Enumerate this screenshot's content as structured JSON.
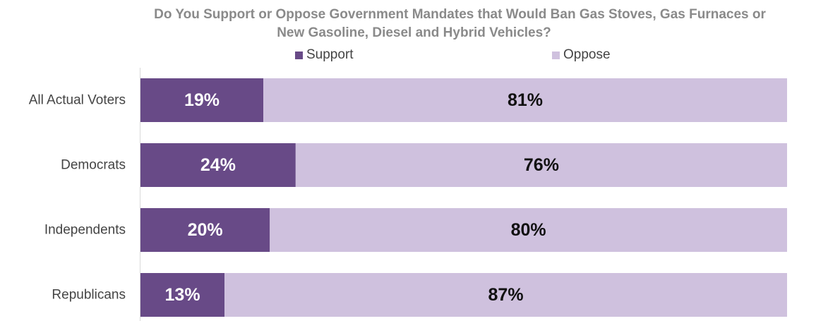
{
  "chart_data": {
    "type": "bar",
    "orientation": "horizontal",
    "stacked": true,
    "title": "Do You Support or Oppose Government Mandates that Would Ban Gas Stoves, Gas Furnaces or New Gasoline, Diesel and Hybrid Vehicles?",
    "title_lines": [
      "Do You Support or Oppose Government Mandates that Would Ban Gas Stoves, Gas Furnaces or",
      "New Gasoline, Diesel and Hybrid Vehicles?"
    ],
    "categories": [
      "All Actual Voters",
      "Democrats",
      "Independents",
      "Republicans"
    ],
    "series": [
      {
        "name": "Support",
        "values": [
          19,
          24,
          20,
          13
        ],
        "labels": [
          "19%",
          "24%",
          "20%",
          "13%"
        ],
        "color": "#684a87",
        "label_color": "#ffffff"
      },
      {
        "name": "Oppose",
        "values": [
          81,
          76,
          80,
          87
        ],
        "labels": [
          "81%",
          "76%",
          "80%",
          "87%"
        ],
        "color": "#cfc1de",
        "label_color": "#111111"
      }
    ],
    "xlim": [
      0,
      100
    ],
    "xlabel": "",
    "ylabel": "",
    "grid": false,
    "legend_position": "top"
  },
  "colors": {
    "title": "#8a8a8a",
    "category_label": "#444444",
    "axis_line": "#d9d9d9"
  }
}
